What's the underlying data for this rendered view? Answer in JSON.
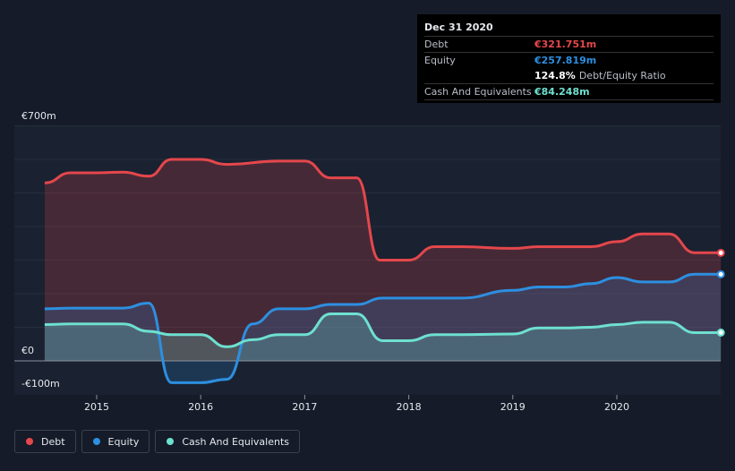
{
  "chart_data": {
    "type": "area",
    "x_ticks": [
      2015,
      2016,
      2017,
      2018,
      2019,
      2020
    ],
    "y_tick_labels": {
      "top": "€700m",
      "zero": "€0",
      "bottom": "-€100m"
    },
    "ylim": [
      -100,
      700
    ],
    "unit": "€m",
    "series": [
      {
        "name": "Debt",
        "color": "#e4474c",
        "points": [
          [
            2014.5,
            530
          ],
          [
            2014.75,
            560
          ],
          [
            2015.0,
            560
          ],
          [
            2015.25,
            562
          ],
          [
            2015.5,
            550
          ],
          [
            2015.72,
            600
          ],
          [
            2016.0,
            600
          ],
          [
            2016.25,
            585
          ],
          [
            2016.75,
            595
          ],
          [
            2017.0,
            595
          ],
          [
            2017.25,
            545
          ],
          [
            2017.5,
            545
          ],
          [
            2017.72,
            300
          ],
          [
            2018.0,
            300
          ],
          [
            2018.25,
            340
          ],
          [
            2018.5,
            340
          ],
          [
            2019.0,
            335
          ],
          [
            2019.25,
            340
          ],
          [
            2019.75,
            340
          ],
          [
            2020.0,
            355
          ],
          [
            2020.25,
            378
          ],
          [
            2020.5,
            378
          ],
          [
            2020.75,
            322
          ],
          [
            2021.0,
            321.751
          ]
        ]
      },
      {
        "name": "Equity",
        "color": "#2d8fe0",
        "points": [
          [
            2014.5,
            155
          ],
          [
            2014.75,
            157
          ],
          [
            2015.0,
            157
          ],
          [
            2015.25,
            157
          ],
          [
            2015.5,
            172
          ],
          [
            2015.72,
            -65
          ],
          [
            2016.0,
            -65
          ],
          [
            2016.25,
            -55
          ],
          [
            2016.5,
            110
          ],
          [
            2016.75,
            155
          ],
          [
            2017.0,
            155
          ],
          [
            2017.25,
            168
          ],
          [
            2017.5,
            168
          ],
          [
            2017.75,
            187
          ],
          [
            2018.0,
            187
          ],
          [
            2018.5,
            187
          ],
          [
            2019.0,
            210
          ],
          [
            2019.25,
            220
          ],
          [
            2019.5,
            220
          ],
          [
            2019.75,
            230
          ],
          [
            2020.0,
            248
          ],
          [
            2020.25,
            235
          ],
          [
            2020.5,
            235
          ],
          [
            2020.75,
            258
          ],
          [
            2021.0,
            257.819
          ]
        ]
      },
      {
        "name": "Cash And Equivalents",
        "color": "#6ee0d0",
        "points": [
          [
            2014.5,
            108
          ],
          [
            2014.75,
            110
          ],
          [
            2015.0,
            110
          ],
          [
            2015.25,
            110
          ],
          [
            2015.5,
            88
          ],
          [
            2015.72,
            78
          ],
          [
            2016.0,
            78
          ],
          [
            2016.25,
            42
          ],
          [
            2016.5,
            63
          ],
          [
            2016.75,
            78
          ],
          [
            2017.0,
            78
          ],
          [
            2017.25,
            140
          ],
          [
            2017.5,
            140
          ],
          [
            2017.75,
            60
          ],
          [
            2018.0,
            60
          ],
          [
            2018.25,
            78
          ],
          [
            2018.5,
            78
          ],
          [
            2019.0,
            80
          ],
          [
            2019.25,
            98
          ],
          [
            2019.5,
            98
          ],
          [
            2019.75,
            100
          ],
          [
            2020.0,
            108
          ],
          [
            2020.25,
            115
          ],
          [
            2020.5,
            115
          ],
          [
            2020.75,
            84
          ],
          [
            2021.0,
            84.248
          ]
        ]
      }
    ]
  },
  "tooltip": {
    "date": "Dec 31 2020",
    "debt_label": "Debt",
    "debt_value": "€321.751m",
    "equity_label": "Equity",
    "equity_value": "€257.819m",
    "ratio_value": "124.8%",
    "ratio_label": "Debt/Equity Ratio",
    "cash_label": "Cash And Equivalents",
    "cash_value": "€84.248m"
  },
  "legend": [
    {
      "label": "Debt",
      "color": "#e4474c"
    },
    {
      "label": "Equity",
      "color": "#2d8fe0"
    },
    {
      "label": "Cash And Equivalents",
      "color": "#6ee0d0"
    }
  ]
}
